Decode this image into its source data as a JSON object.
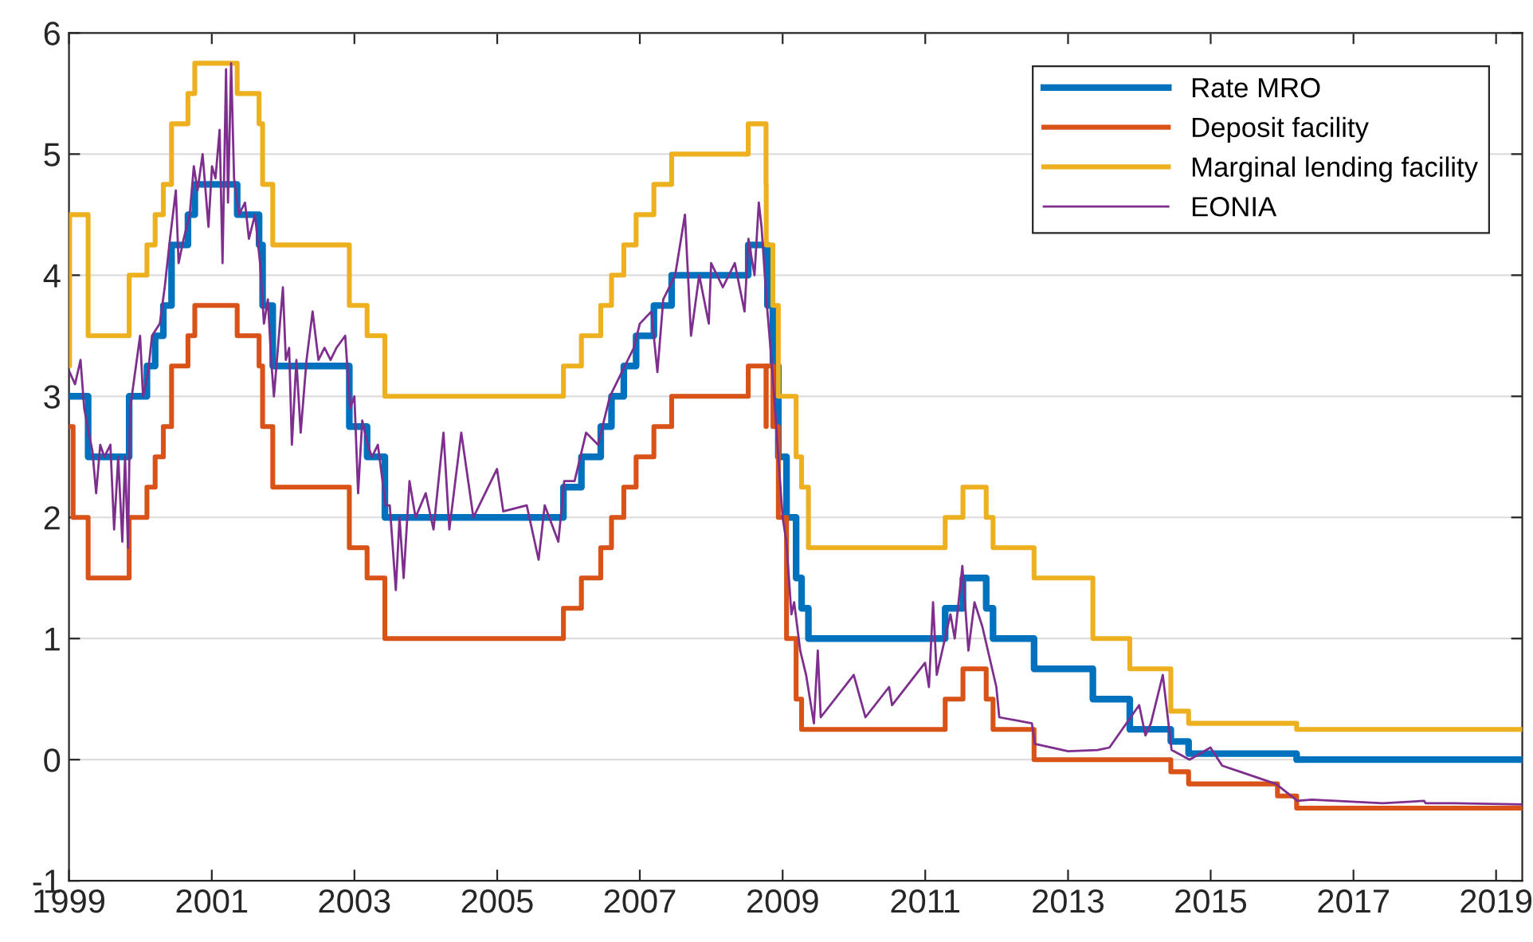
{
  "chart_data": {
    "type": "step",
    "xlim": [
      "1999-01-01",
      "2019-05-15"
    ],
    "xticks": [
      "1999",
      "2001",
      "2003",
      "2005",
      "2007",
      "2009",
      "2011",
      "2013",
      "2015",
      "2017",
      "2019"
    ],
    "ylim": [
      -1,
      6
    ],
    "yticks": [
      -1,
      0,
      1,
      2,
      3,
      4,
      5,
      6
    ],
    "grid": "y",
    "legend": "top right",
    "series": [
      {
        "name": "Rate MRO",
        "color": "#0072bd",
        "x": [
          "1999-01-01",
          "1999-04-09",
          "1999-11-05",
          "2000-02-04",
          "2000-03-17",
          "2000-04-28",
          "2000-06-09",
          "2000-09-01",
          "2000-10-06",
          "2001-05-11",
          "2001-08-31",
          "2001-09-18",
          "2001-11-09",
          "2002-12-06",
          "2003-03-07",
          "2003-06-06",
          "2005-12-06",
          "2006-03-08",
          "2006-06-15",
          "2006-08-09",
          "2006-10-11",
          "2006-12-13",
          "2007-03-14",
          "2007-06-13",
          "2008-07-09",
          "2008-10-15",
          "2008-11-12",
          "2008-12-10",
          "2009-01-21",
          "2009-03-11",
          "2009-04-08",
          "2009-05-13",
          "2011-04-13",
          "2011-07-13",
          "2011-11-09",
          "2011-12-14",
          "2012-07-11",
          "2013-05-08",
          "2013-11-13",
          "2014-06-11",
          "2014-09-10",
          "2016-03-16",
          "2019-05-15"
        ],
        "values": [
          3.0,
          2.5,
          3.0,
          3.25,
          3.5,
          3.75,
          4.25,
          4.5,
          4.75,
          4.5,
          4.25,
          3.75,
          3.25,
          2.75,
          2.5,
          2.0,
          2.25,
          2.5,
          2.75,
          3.0,
          3.25,
          3.5,
          3.75,
          4.0,
          4.25,
          3.75,
          3.25,
          2.5,
          2.0,
          1.5,
          1.25,
          1.0,
          1.25,
          1.5,
          1.25,
          1.0,
          0.75,
          0.5,
          0.25,
          0.15,
          0.05,
          0.0,
          0.0
        ]
      },
      {
        "name": "Deposit facility",
        "color": "#d95319",
        "x": [
          "1999-01-01",
          "1999-01-22",
          "1999-04-09",
          "1999-11-05",
          "2000-02-04",
          "2000-03-17",
          "2000-04-28",
          "2000-06-09",
          "2000-09-01",
          "2000-10-06",
          "2001-05-11",
          "2001-08-31",
          "2001-09-18",
          "2001-11-09",
          "2002-12-06",
          "2003-03-07",
          "2003-06-06",
          "2005-12-06",
          "2006-03-08",
          "2006-06-15",
          "2006-08-09",
          "2006-10-11",
          "2006-12-13",
          "2007-03-14",
          "2007-06-13",
          "2008-07-09",
          "2008-10-08",
          "2008-10-09",
          "2008-11-12",
          "2008-12-10",
          "2009-01-21",
          "2009-03-11",
          "2009-04-08",
          "2011-04-13",
          "2011-07-13",
          "2011-11-09",
          "2011-12-14",
          "2012-07-11",
          "2014-06-11",
          "2014-09-10",
          "2015-12-09",
          "2016-03-16",
          "2019-05-15"
        ],
        "values": [
          2.75,
          2.0,
          1.5,
          2.0,
          2.25,
          2.5,
          2.75,
          3.25,
          3.5,
          3.75,
          3.5,
          3.25,
          2.75,
          2.25,
          1.75,
          1.5,
          1.0,
          1.25,
          1.5,
          1.75,
          2.0,
          2.25,
          2.5,
          2.75,
          3.0,
          3.25,
          2.75,
          3.25,
          2.75,
          2.0,
          1.0,
          0.5,
          0.25,
          0.5,
          0.75,
          0.5,
          0.25,
          0.0,
          -0.1,
          -0.2,
          -0.3,
          -0.4,
          -0.4
        ]
      },
      {
        "name": "Marginal lending facility",
        "color": "#edb120",
        "x": [
          "1999-01-01",
          "1999-01-04",
          "1999-01-22",
          "1999-04-09",
          "1999-11-05",
          "2000-02-04",
          "2000-03-17",
          "2000-04-28",
          "2000-06-09",
          "2000-09-01",
          "2000-10-06",
          "2001-05-11",
          "2001-08-31",
          "2001-09-18",
          "2001-11-09",
          "2002-12-06",
          "2003-03-07",
          "2003-06-06",
          "2005-12-06",
          "2006-03-08",
          "2006-06-15",
          "2006-08-09",
          "2006-10-11",
          "2006-12-13",
          "2007-03-14",
          "2007-06-13",
          "2008-07-09",
          "2008-10-08",
          "2008-10-09",
          "2008-11-12",
          "2008-12-10",
          "2009-03-11",
          "2009-04-08",
          "2009-05-13",
          "2011-04-13",
          "2011-07-13",
          "2011-11-09",
          "2011-12-14",
          "2012-07-11",
          "2013-05-08",
          "2013-11-13",
          "2014-06-11",
          "2014-09-10",
          "2016-03-16",
          "2019-05-15"
        ],
        "values": [
          3.25,
          4.5,
          4.5,
          3.5,
          4.0,
          4.25,
          4.5,
          4.75,
          5.25,
          5.5,
          5.75,
          5.5,
          5.25,
          4.75,
          4.25,
          3.75,
          3.5,
          3.0,
          3.25,
          3.5,
          3.75,
          4.0,
          4.25,
          4.5,
          4.75,
          5.0,
          5.25,
          4.75,
          4.25,
          3.75,
          3.0,
          2.5,
          2.25,
          1.75,
          2.0,
          2.25,
          2.0,
          1.75,
          1.5,
          1.0,
          0.75,
          0.4,
          0.3,
          0.25,
          0.25
        ]
      },
      {
        "name": "EONIA",
        "color": "#7e2f8e",
        "type": "line",
        "x": [
          "1999-01-04",
          "1999-02-01",
          "1999-03-01",
          "1999-03-20",
          "1999-04-12",
          "1999-05-01",
          "1999-05-20",
          "1999-06-10",
          "1999-07-01",
          "1999-08-01",
          "1999-08-20",
          "1999-09-10",
          "1999-10-01",
          "1999-10-15",
          "1999-10-30",
          "1999-11-10",
          "1999-12-31",
          "2000-01-15",
          "2000-02-10",
          "2000-03-01",
          "2000-04-10",
          "2000-05-05",
          "2000-06-01",
          "2000-07-01",
          "2000-07-15",
          "2000-08-10",
          "2000-09-10",
          "2000-10-01",
          "2000-10-20",
          "2000-11-15",
          "2000-12-15",
          "2001-01-02",
          "2001-01-20",
          "2001-02-10",
          "2001-02-25",
          "2001-03-15",
          "2001-03-25",
          "2001-04-10",
          "2001-04-25",
          "2001-05-20",
          "2001-06-20",
          "2001-07-10",
          "2001-08-10",
          "2001-09-05",
          "2001-09-25",
          "2001-10-15",
          "2001-11-01",
          "2001-11-15",
          "2001-12-31",
          "2002-01-15",
          "2002-02-01",
          "2002-02-15",
          "2002-03-10",
          "2002-04-01",
          "2002-05-01",
          "2002-06-01",
          "2002-07-01",
          "2002-08-01",
          "2002-09-01",
          "2002-10-01",
          "2002-11-15",
          "2002-12-10",
          "2003-01-01",
          "2003-01-20",
          "2003-02-10",
          "2003-03-10",
          "2003-04-01",
          "2003-05-01",
          "2003-06-10",
          "2003-07-01",
          "2003-08-01",
          "2003-08-20",
          "2003-09-10",
          "2003-10-10",
          "2003-11-10",
          "2004-01-01",
          "2004-02-10",
          "2004-04-01",
          "2004-05-01",
          "2004-07-01",
          "2004-09-01",
          "2004-10-01",
          "2004-12-31",
          "2005-02-01",
          "2005-06-01",
          "2005-08-01",
          "2005-09-01",
          "2005-11-10",
          "2005-12-10",
          "2006-02-01",
          "2006-04-01",
          "2006-06-01",
          "2006-08-01",
          "2006-10-01",
          "2006-12-01",
          "2007-01-01",
          "2007-03-01",
          "2007-04-01",
          "2007-05-01",
          "2007-07-01",
          "2007-08-20",
          "2007-09-20",
          "2007-11-01",
          "2007-12-20",
          "2008-01-01",
          "2008-03-01",
          "2008-05-01",
          "2008-06-20",
          "2008-07-10",
          "2008-08-10",
          "2008-09-01",
          "2008-09-15",
          "2008-10-10",
          "2008-11-10",
          "2008-12-10",
          "2009-01-01",
          "2009-01-20",
          "2009-02-15",
          "2009-03-01",
          "2009-04-01",
          "2009-05-01",
          "2009-06-10",
          "2009-06-30",
          "2009-07-15",
          "2009-12-31",
          "2010-03-01",
          "2010-06-30",
          "2010-07-15",
          "2010-12-31",
          "2011-01-20",
          "2011-02-10",
          "2011-03-01",
          "2011-05-10",
          "2011-06-01",
          "2011-07-10",
          "2011-08-10",
          "2011-09-10",
          "2011-10-20",
          "2011-12-31",
          "2012-01-15",
          "2012-06-30",
          "2012-07-15",
          "2013-01-01",
          "2013-06-01",
          "2013-08-01",
          "2013-12-31",
          "2014-02-01",
          "2014-03-01",
          "2014-05-01",
          "2014-06-15",
          "2014-09-15",
          "2014-12-31",
          "2015-03-01",
          "2015-06-01",
          "2015-12-01",
          "2016-03-20",
          "2016-06-01",
          "2017-06-01",
          "2017-12-29",
          "2018-01-05",
          "2018-06-01",
          "2019-05-15"
        ],
        "values": [
          3.2,
          3.1,
          3.3,
          2.9,
          2.7,
          2.55,
          2.2,
          2.6,
          2.5,
          2.6,
          1.9,
          2.5,
          1.8,
          2.5,
          1.75,
          2.9,
          3.5,
          3.0,
          3.2,
          3.5,
          3.6,
          3.9,
          4.3,
          4.7,
          4.1,
          4.3,
          4.5,
          4.9,
          4.7,
          5.0,
          4.4,
          4.9,
          4.8,
          5.2,
          4.1,
          5.7,
          4.6,
          5.75,
          4.8,
          4.5,
          4.6,
          4.3,
          4.5,
          4.1,
          3.6,
          3.8,
          3.3,
          3.0,
          3.9,
          3.3,
          3.4,
          2.6,
          3.3,
          2.7,
          3.3,
          3.7,
          3.3,
          3.4,
          3.3,
          3.4,
          3.5,
          2.9,
          3.0,
          2.2,
          2.8,
          2.6,
          2.5,
          2.6,
          2.1,
          2.1,
          1.4,
          2.0,
          1.5,
          2.3,
          2.0,
          2.2,
          1.9,
          2.7,
          1.9,
          2.7,
          2.0,
          2.1,
          2.4,
          2.05,
          2.1,
          1.65,
          2.1,
          1.8,
          2.3,
          2.3,
          2.7,
          2.6,
          3.0,
          3.2,
          3.4,
          3.6,
          3.7,
          3.2,
          3.8,
          4.0,
          4.5,
          3.5,
          4.0,
          3.6,
          4.1,
          3.9,
          4.1,
          3.7,
          4.3,
          4.0,
          4.6,
          4.4,
          3.8,
          3.2,
          2.5,
          2.0,
          1.8,
          1.2,
          1.3,
          0.9,
          0.7,
          0.3,
          0.9,
          0.35,
          0.7,
          0.35,
          0.6,
          0.45,
          0.8,
          0.6,
          1.3,
          0.7,
          1.2,
          1.0,
          1.6,
          0.9,
          1.3,
          1.1,
          0.6,
          0.35,
          0.3,
          0.13,
          0.07,
          0.08,
          0.1,
          0.45,
          0.2,
          0.3,
          0.7,
          0.08,
          0.0,
          0.1,
          -0.05,
          -0.1,
          -0.2,
          -0.34,
          -0.33,
          -0.36,
          -0.34,
          -0.36,
          -0.36,
          -0.37
        ]
      }
    ]
  }
}
